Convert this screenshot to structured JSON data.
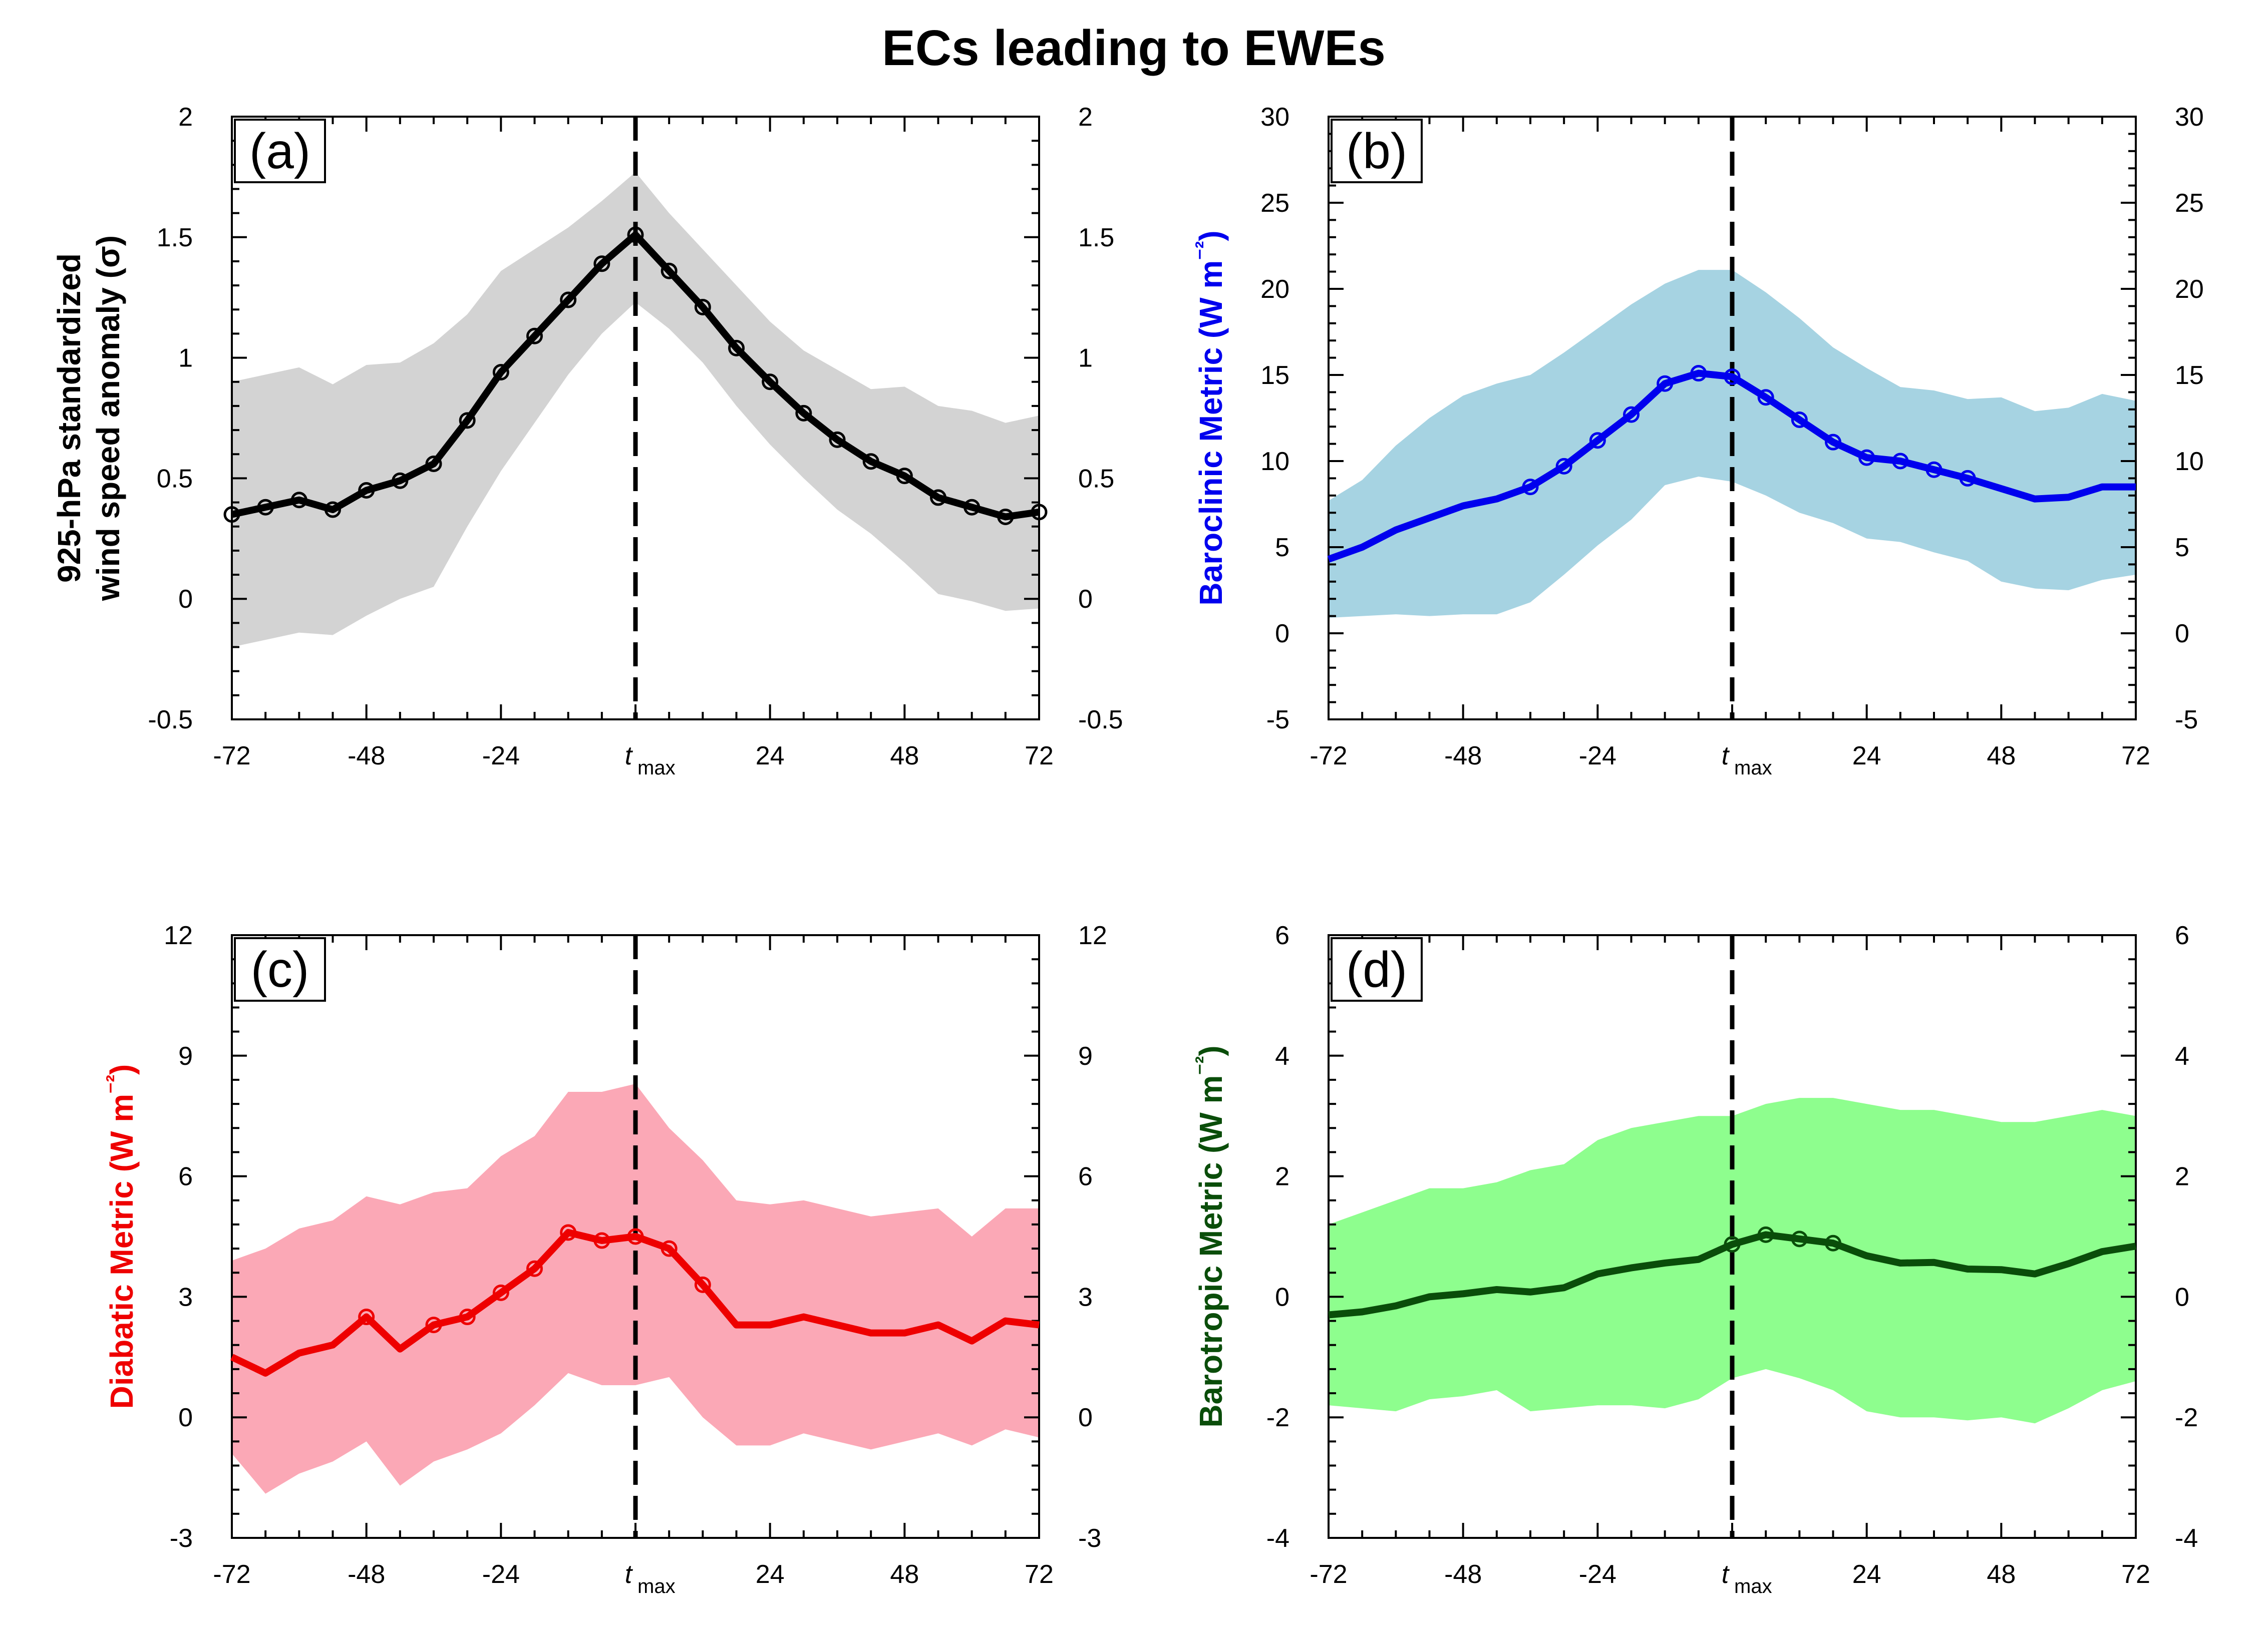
{
  "figure": {
    "title": "ECs leading to EWEs"
  },
  "chart_data": [
    {
      "type": "line",
      "panel_label": "(a)",
      "ylabel": [
        "925-hPa standardized",
        "wind speed anomaly (σ)"
      ],
      "ylabel_color": "#000000",
      "line_color": "#000000",
      "band_color": "#d3d3d3",
      "ylim": [
        -0.5,
        2
      ],
      "yticks": [
        -0.5,
        0,
        0.5,
        1,
        1.5,
        2
      ],
      "ytick_labels": [
        "-0.5",
        "0",
        "0.5",
        "1",
        "1.5",
        "2"
      ],
      "xlim": [
        -72,
        72
      ],
      "xticks": [
        -72,
        -48,
        -24,
        0,
        24,
        48,
        72
      ],
      "xtick_labels": [
        "-72",
        "-48",
        "-24",
        "t",
        "24",
        "48",
        "72"
      ],
      "xtick_sub": "max",
      "tmax_line": 0,
      "x": [
        -72,
        -66,
        -60,
        -54,
        -48,
        -42,
        -36,
        -30,
        -24,
        -18,
        -12,
        -6,
        0,
        6,
        12,
        18,
        24,
        30,
        36,
        42,
        48,
        54,
        60,
        66,
        72
      ],
      "y": [
        0.35,
        0.38,
        0.41,
        0.37,
        0.45,
        0.49,
        0.56,
        0.74,
        0.94,
        1.09,
        1.24,
        1.39,
        1.51,
        1.36,
        1.21,
        1.04,
        0.9,
        0.77,
        0.66,
        0.57,
        0.51,
        0.42,
        0.38,
        0.34,
        0.36
      ],
      "markers": [
        -72,
        -66,
        -60,
        -54,
        -48,
        -42,
        -36,
        -30,
        -24,
        -18,
        -12,
        -6,
        0,
        6,
        12,
        18,
        24,
        30,
        36,
        42,
        48,
        54,
        60,
        66,
        72
      ],
      "band_upper": [
        0.9,
        0.93,
        0.96,
        0.89,
        0.97,
        0.98,
        1.06,
        1.18,
        1.36,
        1.45,
        1.54,
        1.65,
        1.77,
        1.6,
        1.45,
        1.3,
        1.15,
        1.03,
        0.95,
        0.87,
        0.88,
        0.8,
        0.78,
        0.73,
        0.76
      ],
      "band_lower": [
        -0.2,
        -0.17,
        -0.14,
        -0.15,
        -0.07,
        0.0,
        0.05,
        0.3,
        0.53,
        0.73,
        0.93,
        1.1,
        1.23,
        1.12,
        0.98,
        0.8,
        0.64,
        0.5,
        0.37,
        0.27,
        0.15,
        0.02,
        -0.01,
        -0.05,
        -0.04
      ]
    },
    {
      "type": "line",
      "panel_label": "(b)",
      "ylabel": [
        "Baroclinic Metric (W m",
        "⁻²",
        ")"
      ],
      "ylabel_color": "#0000ee",
      "line_color": "#0000ee",
      "band_color": "#a6d3e2",
      "ylim": [
        -5,
        30
      ],
      "yticks": [
        -5,
        0,
        5,
        10,
        15,
        20,
        25,
        30
      ],
      "ytick_labels": [
        "-5",
        "0",
        "5",
        "10",
        "15",
        "20",
        "25",
        "30"
      ],
      "xlim": [
        -72,
        72
      ],
      "xticks": [
        -72,
        -48,
        -24,
        0,
        24,
        48,
        72
      ],
      "xtick_labels": [
        "-72",
        "-48",
        "-24",
        "t",
        "24",
        "48",
        "72"
      ],
      "xtick_sub": "max",
      "tmax_line": 0,
      "x": [
        -72,
        -66,
        -60,
        -54,
        -48,
        -42,
        -36,
        -30,
        -24,
        -18,
        -12,
        -6,
        0,
        6,
        12,
        18,
        24,
        30,
        36,
        42,
        48,
        54,
        60,
        66,
        72
      ],
      "y": [
        4.3,
        5.0,
        6.0,
        6.7,
        7.4,
        7.8,
        8.5,
        9.7,
        11.2,
        12.7,
        14.5,
        15.1,
        14.9,
        13.7,
        12.4,
        11.1,
        10.2,
        10.0,
        9.5,
        9.0,
        8.4,
        7.8,
        7.9,
        8.5,
        8.5
      ],
      "markers": [
        -36,
        -30,
        -24,
        -18,
        -12,
        -6,
        0,
        6,
        12,
        18,
        24,
        30,
        36,
        42
      ],
      "band_upper": [
        7.7,
        8.9,
        10.9,
        12.5,
        13.8,
        14.5,
        15.0,
        16.3,
        17.7,
        19.1,
        20.3,
        21.1,
        21.1,
        19.8,
        18.3,
        16.6,
        15.4,
        14.3,
        14.1,
        13.6,
        13.7,
        12.9,
        13.1,
        13.9,
        13.5
      ],
      "band_lower": [
        0.9,
        1.0,
        1.1,
        1.0,
        1.1,
        1.1,
        1.8,
        3.4,
        5.1,
        6.6,
        8.6,
        9.1,
        8.8,
        8.0,
        7.0,
        6.4,
        5.5,
        5.3,
        4.7,
        4.2,
        3.0,
        2.6,
        2.5,
        3.1,
        3.4
      ]
    },
    {
      "type": "line",
      "panel_label": "(c)",
      "ylabel": [
        "Diabatic Metric (W m",
        "⁻²",
        ")"
      ],
      "ylabel_color": "#ee0000",
      "line_color": "#ee0000",
      "band_color": "#fba8b6",
      "ylim": [
        -3,
        12
      ],
      "yticks": [
        -3,
        0,
        3,
        6,
        9,
        12
      ],
      "ytick_labels": [
        "-3",
        "0",
        "3",
        "6",
        "9",
        "12"
      ],
      "xlim": [
        -72,
        72
      ],
      "xticks": [
        -72,
        -48,
        -24,
        0,
        24,
        48,
        72
      ],
      "xtick_labels": [
        "-72",
        "-48",
        "-24",
        "t",
        "24",
        "48",
        "72"
      ],
      "xtick_sub": "max",
      "tmax_line": 0,
      "x": [
        -72,
        -66,
        -60,
        -54,
        -48,
        -42,
        -36,
        -30,
        -24,
        -18,
        -12,
        -6,
        0,
        6,
        12,
        18,
        24,
        30,
        36,
        42,
        48,
        54,
        60,
        66,
        72
      ],
      "y": [
        1.5,
        1.1,
        1.6,
        1.8,
        2.5,
        1.7,
        2.3,
        2.5,
        3.1,
        3.7,
        4.6,
        4.4,
        4.5,
        4.2,
        3.3,
        2.3,
        2.3,
        2.5,
        2.3,
        2.1,
        2.1,
        2.3,
        1.9,
        2.4,
        2.3
      ],
      "markers": [
        -48,
        -36,
        -30,
        -24,
        -18,
        -12,
        -6,
        0,
        6,
        12
      ],
      "band_upper": [
        3.9,
        4.2,
        4.7,
        4.9,
        5.5,
        5.3,
        5.6,
        5.7,
        6.5,
        7.0,
        8.1,
        8.1,
        8.3,
        7.2,
        6.4,
        5.4,
        5.3,
        5.4,
        5.2,
        5.0,
        5.1,
        5.2,
        4.5,
        5.2,
        5.2
      ],
      "band_lower": [
        -0.9,
        -1.9,
        -1.4,
        -1.1,
        -0.6,
        -1.7,
        -1.1,
        -0.8,
        -0.4,
        0.3,
        1.1,
        0.8,
        0.8,
        1.0,
        0.0,
        -0.7,
        -0.7,
        -0.4,
        -0.6,
        -0.8,
        -0.6,
        -0.4,
        -0.7,
        -0.3,
        -0.5
      ]
    },
    {
      "type": "line",
      "panel_label": "(d)",
      "ylabel": [
        "Barotropic Metric (W m",
        "⁻²",
        ")"
      ],
      "ylabel_color": "#0a4d0a",
      "line_color": "#0a4d0a",
      "band_color": "#8efe8e",
      "ylim": [
        -4,
        6
      ],
      "yticks": [
        -4,
        -2,
        0,
        2,
        4,
        6
      ],
      "ytick_labels": [
        "-4",
        "-2",
        "0",
        "2",
        "4",
        "6"
      ],
      "xlim": [
        -72,
        72
      ],
      "xticks": [
        -72,
        -48,
        -24,
        0,
        24,
        48,
        72
      ],
      "xtick_labels": [
        "-72",
        "-48",
        "-24",
        "t",
        "24",
        "48",
        "72"
      ],
      "xtick_sub": "max",
      "tmax_line": 0,
      "x": [
        -72,
        -66,
        -60,
        -54,
        -48,
        -42,
        -36,
        -30,
        -24,
        -18,
        -12,
        -6,
        0,
        6,
        12,
        18,
        24,
        30,
        36,
        42,
        48,
        54,
        60,
        66,
        72
      ],
      "y": [
        -0.3,
        -0.25,
        -0.15,
        0.0,
        0.05,
        0.12,
        0.08,
        0.15,
        0.38,
        0.48,
        0.56,
        0.62,
        0.87,
        1.03,
        0.96,
        0.89,
        0.68,
        0.56,
        0.57,
        0.46,
        0.45,
        0.38,
        0.55,
        0.75,
        0.84
      ],
      "markers": [
        0,
        6,
        12,
        18
      ],
      "band_upper": [
        1.2,
        1.4,
        1.6,
        1.8,
        1.8,
        1.9,
        2.1,
        2.2,
        2.6,
        2.8,
        2.9,
        3.0,
        3.0,
        3.2,
        3.3,
        3.3,
        3.2,
        3.1,
        3.1,
        3.0,
        2.9,
        2.9,
        3.0,
        3.1,
        3.0
      ],
      "band_lower": [
        -1.8,
        -1.85,
        -1.9,
        -1.7,
        -1.65,
        -1.55,
        -1.9,
        -1.85,
        -1.8,
        -1.8,
        -1.85,
        -1.7,
        -1.35,
        -1.2,
        -1.35,
        -1.55,
        -1.9,
        -2.0,
        -2.0,
        -2.05,
        -2.0,
        -2.1,
        -1.85,
        -1.55,
        -1.4
      ]
    }
  ]
}
